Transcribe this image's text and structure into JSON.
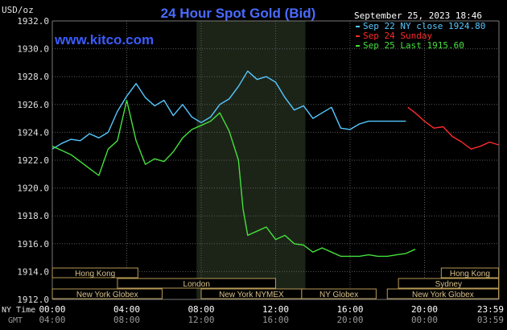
{
  "chart_data": {
    "type": "line",
    "title": "24 Hour Spot Gold (Bid)",
    "watermark": "www.kitco.com",
    "timestamp": "September 25, 2023 18:46",
    "ylabel": "USD/oz",
    "ylim": [
      1912.0,
      1932.0
    ],
    "yticks": [
      "1912.0",
      "1914.0",
      "1916.0",
      "1918.0",
      "1920.0",
      "1922.0",
      "1924.0",
      "1926.0",
      "1928.0",
      "1930.0",
      "1932.0"
    ],
    "xlim": [
      0,
      24
    ],
    "xticks_ny": [
      "00:00",
      "04:00",
      "08:00",
      "12:00",
      "16:00",
      "20:00",
      "23:59"
    ],
    "xticks_gmt": [
      "04:00",
      "08:00",
      "12:00",
      "16:00",
      "20:00",
      "00:00",
      "03:59"
    ],
    "xaxis_label_ny": "NY Time",
    "xaxis_label_gmt": "GMT",
    "grid": true,
    "highlight_hours": [
      7.75,
      13.6
    ],
    "legend_position": "top-right",
    "series": [
      {
        "name": "Sep 22 NY close 1924.80",
        "color": "#55c8ff",
        "x": [
          0,
          0.5,
          1,
          1.5,
          2,
          2.5,
          3,
          3.5,
          4,
          4.5,
          5,
          5.5,
          6,
          6.5,
          7,
          7.5,
          8,
          8.5,
          9,
          9.5,
          10,
          10.5,
          11,
          11.5,
          12,
          12.5,
          13,
          13.5,
          14,
          14.5,
          15,
          15.5,
          16,
          16.5,
          17,
          17.5,
          18,
          18.5,
          19
        ],
        "y": [
          1922.8,
          1923.2,
          1923.5,
          1923.4,
          1923.9,
          1923.6,
          1924.0,
          1925.5,
          1926.6,
          1927.5,
          1926.5,
          1925.9,
          1926.3,
          1925.2,
          1926.0,
          1925.1,
          1924.7,
          1925.1,
          1926.0,
          1926.4,
          1927.3,
          1928.4,
          1927.8,
          1928.0,
          1927.6,
          1926.5,
          1925.6,
          1925.9,
          1925.0,
          1925.4,
          1925.8,
          1924.3,
          1924.2,
          1924.6,
          1924.8,
          1924.8,
          1924.8,
          1924.8,
          1924.8
        ]
      },
      {
        "name": "Sep 24 Sunday",
        "color": "#ff2a2a",
        "x": [
          19.1,
          19.5,
          20,
          20.5,
          21,
          21.5,
          22,
          22.5,
          23,
          23.5,
          23.98
        ],
        "y": [
          1925.8,
          1925.4,
          1924.8,
          1924.3,
          1924.4,
          1923.7,
          1923.3,
          1922.8,
          1923.0,
          1923.3,
          1923.1
        ]
      },
      {
        "name": "Sep 25 Last 1915.60",
        "color": "#44e03c",
        "x": [
          0,
          0.5,
          1,
          1.5,
          2,
          2.5,
          3,
          3.5,
          4,
          4.5,
          5,
          5.5,
          6,
          6.5,
          7,
          7.5,
          8,
          8.5,
          9,
          9.5,
          10,
          10.25,
          10.5,
          11,
          11.5,
          12,
          12.5,
          13,
          13.5,
          14,
          14.5,
          15,
          15.5,
          16,
          16.5,
          17,
          17.5,
          18,
          18.5,
          19,
          19.5
        ],
        "y": [
          1923.0,
          1922.7,
          1922.4,
          1921.9,
          1921.4,
          1920.9,
          1922.8,
          1923.4,
          1926.3,
          1923.4,
          1921.7,
          1922.1,
          1921.9,
          1922.6,
          1923.6,
          1924.2,
          1924.5,
          1924.8,
          1925.4,
          1924.1,
          1922.0,
          1918.5,
          1916.6,
          1916.9,
          1917.2,
          1916.3,
          1916.6,
          1916.0,
          1915.9,
          1915.4,
          1915.7,
          1915.4,
          1915.1,
          1915.1,
          1915.1,
          1915.2,
          1915.1,
          1915.1,
          1915.2,
          1915.3,
          1915.6
        ]
      }
    ],
    "sessions": [
      {
        "label": "Hong Kong",
        "start": 0.0,
        "end": 4.6,
        "row": 0
      },
      {
        "label": "Hong Kong",
        "start": 20.9,
        "end": 23.98,
        "row": 0
      },
      {
        "label": "London",
        "start": 3.5,
        "end": 12.0,
        "row": 1
      },
      {
        "label": "Sydney",
        "start": 18.6,
        "end": 23.98,
        "row": 1
      },
      {
        "label": "New York Globex",
        "start": 0.0,
        "end": 5.9,
        "row": 2
      },
      {
        "label": "New York NYMEX",
        "start": 8.0,
        "end": 13.4,
        "row": 2
      },
      {
        "label": "NY Globex",
        "start": 13.4,
        "end": 17.4,
        "row": 2
      },
      {
        "label": "New York Globex",
        "start": 18.0,
        "end": 23.98,
        "row": 2
      }
    ]
  }
}
